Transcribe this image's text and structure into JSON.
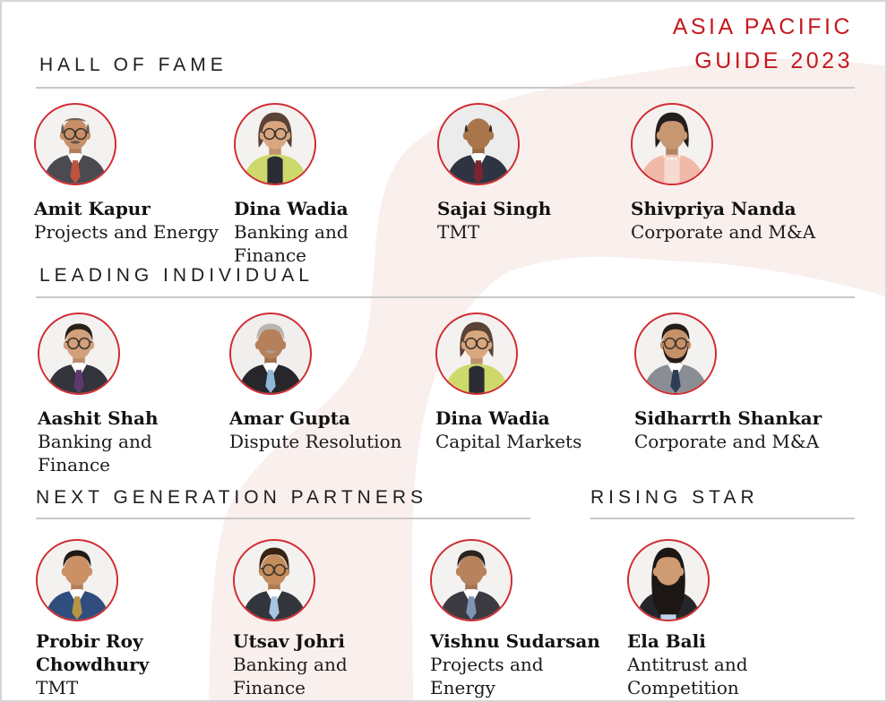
{
  "page": {
    "title_lines": "ASIA PACIFIC\nGUIDE 2023",
    "accent_red": "#c41a1f",
    "ring_red": "#d02b30",
    "swoosh_pink": "#f9efed"
  },
  "sections": [
    {
      "title": "HALL OF FAME",
      "people": [
        {
          "name": "Amit Kapur",
          "practice": "Projects and Energy",
          "avatar": {
            "bg": "#f3f2f0",
            "hair": "balding",
            "hair_color": "#6b6057",
            "skin": "#c89068",
            "suit": "#4a4a50",
            "shirt": "#ffffff",
            "tie": "#c0533c",
            "glasses": true,
            "mustache": true,
            "beard": false,
            "necklace": false
          }
        },
        {
          "name": "Dina Wadia",
          "practice": "Banking and Finance",
          "avatar": {
            "bg": "#f3f2f0",
            "hair": "bob",
            "hair_color": "#5b4236",
            "skin": "#d9a77f",
            "suit": "#cdd96b",
            "shirt": "#2b2b33",
            "tie": null,
            "glasses": true,
            "mustache": false,
            "beard": false,
            "necklace": false
          }
        },
        {
          "name": "Sajai Singh",
          "practice": "TMT",
          "avatar": {
            "bg": "#ececec",
            "hair": "bald",
            "hair_color": "#3a3027",
            "skin": "#a9764c",
            "suit": "#2e3442",
            "shirt": "#ffffff",
            "tie": "#7a2430",
            "glasses": false,
            "mustache": false,
            "beard": false,
            "necklace": false
          }
        },
        {
          "name": "Shivpriya Nanda",
          "practice": "Corporate and M&A",
          "avatar": {
            "bg": "#f3f2f0",
            "hair": "bob",
            "hair_color": "#241f1e",
            "skin": "#c99672",
            "suit": "#f0b9a8",
            "shirt": "#f6d9cf",
            "tie": null,
            "glasses": false,
            "mustache": false,
            "beard": false,
            "necklace": true
          }
        }
      ]
    },
    {
      "title": "LEADING INDIVIDUAL",
      "people": [
        {
          "name": "Aashit Shah",
          "practice": "Banking and Finance",
          "avatar": {
            "bg": "#f3f2f0",
            "hair": "short",
            "hair_color": "#2a2118",
            "skin": "#d2a07a",
            "suit": "#34343c",
            "shirt": "#ffffff",
            "tie": "#5d3a6e",
            "glasses": true,
            "mustache": false,
            "beard": false,
            "necklace": false
          }
        },
        {
          "name": "Amar Gupta",
          "practice": "Dispute Resolution",
          "avatar": {
            "bg": "#f0efed",
            "hair": "short",
            "hair_color": "#b9b4ad",
            "skin": "#b5805a",
            "suit": "#26262b",
            "shirt": "#ffffff",
            "tie": "#8fb8d8",
            "glasses": false,
            "mustache": true,
            "beard": false,
            "necklace": false
          }
        },
        {
          "name": "Dina Wadia",
          "practice": "Capital Markets",
          "avatar": {
            "bg": "#f3f2f0",
            "hair": "bob",
            "hair_color": "#5b4236",
            "skin": "#d9a77f",
            "suit": "#cdd96b",
            "shirt": "#2b2b33",
            "tie": null,
            "glasses": true,
            "mustache": false,
            "beard": false,
            "necklace": false
          }
        },
        {
          "name": "Sidharrth Shankar",
          "practice": "Corporate and M&A",
          "avatar": {
            "bg": "#f3f2f0",
            "hair": "short",
            "hair_color": "#241d18",
            "skin": "#c79168",
            "suit": "#8a8d93",
            "shirt": "#ffffff",
            "tie": "#2f3c55",
            "glasses": true,
            "mustache": false,
            "beard": true,
            "necklace": false
          }
        }
      ]
    },
    {
      "title": "NEXT GENERATION PARTNERS",
      "people": [
        {
          "name": "Probir Roy\nChowdhury",
          "practice": "TMT",
          "avatar": {
            "bg": "#f3f2f0",
            "hair": "short",
            "hair_color": "#1f1a15",
            "skin": "#cb9065",
            "suit": "#2f4d7d",
            "shirt": "#ffffff",
            "tie": "#b79544",
            "glasses": false,
            "mustache": false,
            "beard": false,
            "necklace": false
          }
        },
        {
          "name": "Utsav Johri",
          "practice": "Banking and\nFinance",
          "avatar": {
            "bg": "#f3f2f0",
            "hair": "mop",
            "hair_color": "#3b2313",
            "skin": "#c58c5c",
            "suit": "#33353d",
            "shirt": "#ffffff",
            "tie": "#a8c4e2",
            "glasses": true,
            "mustache": false,
            "beard": false,
            "necklace": false
          }
        },
        {
          "name": "Vishnu Sudarsan",
          "practice": "Projects and\nEnergy",
          "avatar": {
            "bg": "#f3f2f0",
            "hair": "short",
            "hair_color": "#2a2420",
            "skin": "#b8835c",
            "suit": "#3a3a40",
            "shirt": "#ffffff",
            "tie": "#7f93b5",
            "glasses": false,
            "mustache": false,
            "beard": false,
            "necklace": false
          }
        }
      ]
    },
    {
      "title": "RISING STAR",
      "people": [
        {
          "name": "Ela Bali",
          "practice": "Antitrust and\nCompetition",
          "avatar": {
            "bg": "#f3f2f0",
            "hair": "long",
            "hair_color": "#1c1714",
            "skin": "#cf9b72",
            "suit": "#26262a",
            "shirt": "#bcd2ea",
            "tie": null,
            "glasses": false,
            "mustache": false,
            "beard": false,
            "necklace": false
          }
        }
      ]
    }
  ]
}
